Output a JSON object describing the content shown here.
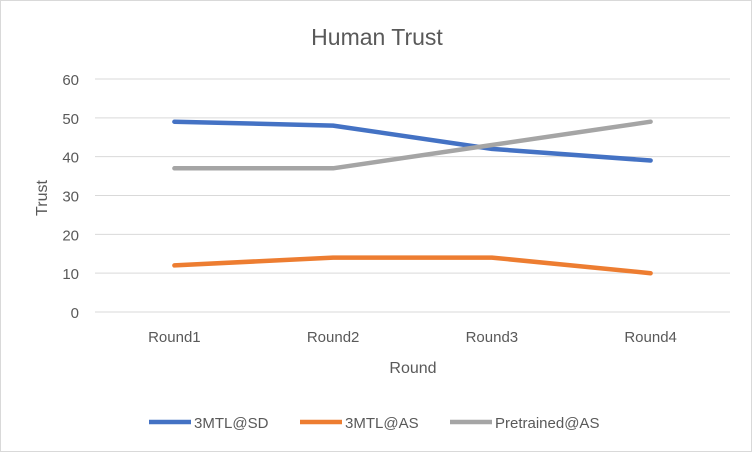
{
  "chart_data": {
    "type": "line",
    "title": "Human Trust",
    "xlabel": "Round",
    "ylabel": "Trust",
    "categories": [
      "Round1",
      "Round2",
      "Round3",
      "Round4"
    ],
    "ylim": [
      0,
      60
    ],
    "yticks": [
      0,
      10,
      20,
      30,
      40,
      50,
      60
    ],
    "grid": true,
    "legend_position": "bottom",
    "series": [
      {
        "name": "3MTL@SD",
        "values": [
          49,
          48,
          42,
          39
        ],
        "color": "#4472c4"
      },
      {
        "name": "3MTL@AS",
        "values": [
          12,
          14,
          14,
          10
        ],
        "color": "#ed7d31"
      },
      {
        "name": "Pretrained@AS",
        "values": [
          37,
          37,
          43,
          49
        ],
        "color": "#a5a5a5"
      }
    ]
  }
}
